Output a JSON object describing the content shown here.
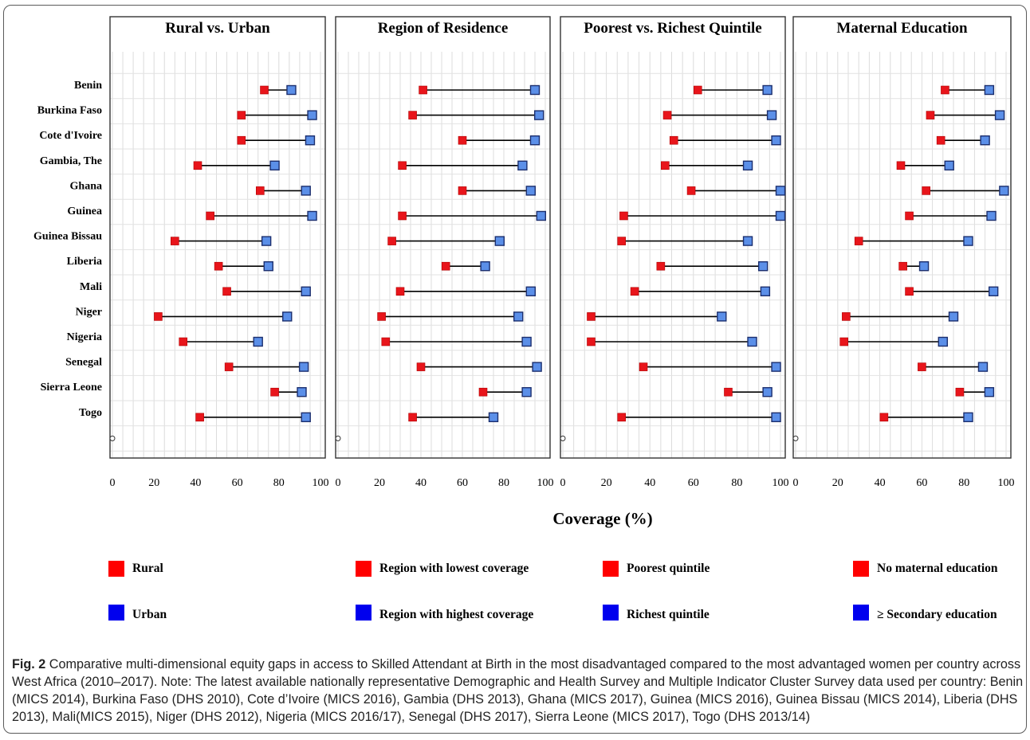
{
  "chart_data": {
    "type": "dumbbell",
    "xlabel": "Coverage (%)",
    "xlim": [
      0,
      100
    ],
    "xticks": [
      0,
      20,
      40,
      60,
      80,
      100
    ],
    "grid": true,
    "countries": [
      "Benin",
      "Burkina Faso",
      "Cote d'Ivoire",
      "Gambia, The",
      "Ghana",
      "Guinea",
      "Guinea Bissau",
      "Liberia",
      "Mali",
      "Niger",
      "Nigeria",
      "Senegal",
      "Sierra Leone",
      "Togo"
    ],
    "colors": {
      "low": "#e8151b",
      "high": "#5b8fe8",
      "legend_low": "#ff0000",
      "legend_high": "#0000ee",
      "line": "#000000"
    },
    "panels": [
      {
        "title": "Rural vs. Urban",
        "low_label": "Rural",
        "high_label": "Urban",
        "low": [
          73,
          62,
          62,
          41,
          71,
          47,
          30,
          51,
          55,
          22,
          34,
          56,
          78,
          42
        ],
        "high": [
          86,
          96,
          95,
          78,
          93,
          96,
          74,
          75,
          93,
          84,
          70,
          92,
          91,
          93
        ]
      },
      {
        "title": "Region of Residence",
        "low_label": "Region with lowest coverage",
        "high_label": "Region with highest coverage",
        "low": [
          41,
          36,
          60,
          31,
          60,
          31,
          26,
          52,
          30,
          21,
          23,
          40,
          70,
          36
        ],
        "high": [
          95,
          97,
          95,
          89,
          93,
          98,
          78,
          71,
          93,
          87,
          91,
          96,
          91,
          75
        ]
      },
      {
        "title": "Poorest vs. Richest Quintile",
        "low_label": "Poorest quintile",
        "high_label": "Richest quintile",
        "low": [
          62,
          48,
          51,
          47,
          59,
          28,
          27,
          45,
          33,
          13,
          13,
          37,
          76,
          27
        ],
        "high": [
          94,
          96,
          98,
          85,
          100,
          100,
          85,
          92,
          93,
          73,
          87,
          98,
          94,
          98
        ]
      },
      {
        "title": "Maternal Education",
        "low_label": "No maternal education",
        "high_label": "≥ Secondary education",
        "low": [
          71,
          64,
          69,
          50,
          62,
          54,
          30,
          51,
          54,
          24,
          23,
          60,
          78,
          42
        ],
        "high": [
          92,
          97,
          90,
          73,
          99,
          93,
          82,
          61,
          94,
          75,
          70,
          89,
          92,
          82
        ]
      }
    ]
  },
  "caption": {
    "label": "Fig. 2",
    "text": " Comparative multi-dimensional equity gaps in access to Skilled Attendant at Birth in the most disadvantaged compared to the most advantaged women per country across West Africa (2010–2017). Note: The latest available nationally representative Demographic and Health Survey and Multiple Indicator Cluster Survey data used per country: Benin (MICS 2014), Burkina Faso (DHS 2010), Cote d’Ivoire (MICS 2016), Gambia (DHS 2013), Ghana (MICS 2017), Guinea (MICS 2016), Guinea Bissau (MICS 2014), Liberia (DHS 2013), Mali(MICS 2015), Niger (DHS 2012), Nigeria (MICS 2016/17), Senegal (DHS 2017), Sierra Leone (MICS 2017), Togo (DHS 2013/14)"
  }
}
